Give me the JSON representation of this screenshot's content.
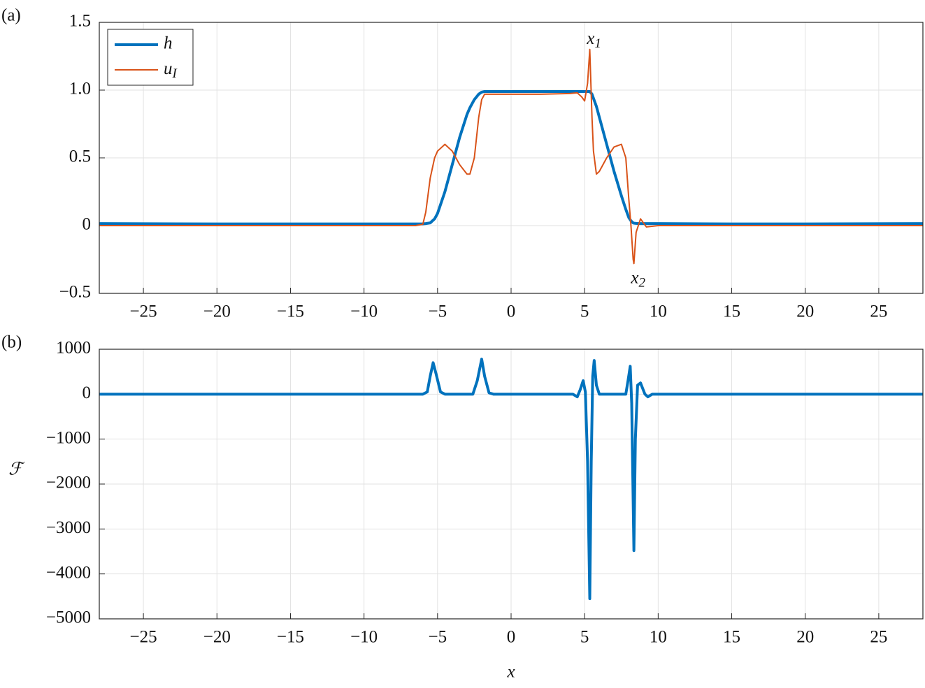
{
  "chart_data": [
    {
      "type": "line",
      "panel_label": "(a)",
      "x": [
        -28,
        -20,
        -10,
        -6.5,
        -6,
        -5.8,
        -5.5,
        -5.2,
        -5,
        -4.5,
        -4,
        -3.5,
        -3,
        -2.8,
        -2.5,
        -2.2,
        -2,
        -1.8,
        -1.5,
        0,
        2,
        4,
        4.5,
        4.8,
        5,
        5.2,
        5.35,
        5.5,
        5.6,
        5.8,
        6,
        6.5,
        7,
        7.5,
        7.8,
        8,
        8.15,
        8.3,
        8.35,
        8.5,
        8.8,
        9.2,
        10,
        15,
        20,
        28
      ],
      "series": [
        {
          "name": "h",
          "color": "#0072BD",
          "width": 4,
          "values": [
            0.015,
            0.012,
            0.012,
            0.012,
            0.013,
            0.015,
            0.02,
            0.05,
            0.09,
            0.25,
            0.45,
            0.65,
            0.82,
            0.87,
            0.93,
            0.97,
            0.985,
            0.99,
            0.99,
            0.99,
            0.99,
            0.99,
            0.99,
            0.99,
            0.99,
            0.99,
            0.99,
            0.97,
            0.94,
            0.88,
            0.8,
            0.6,
            0.4,
            0.22,
            0.12,
            0.06,
            0.035,
            0.02,
            0.018,
            0.016,
            0.015,
            0.015,
            0.015,
            0.012,
            0.012,
            0.015
          ]
        },
        {
          "name": "u_I",
          "color": "#D95319",
          "width": 2,
          "values": [
            0,
            0,
            0,
            0,
            0.01,
            0.1,
            0.35,
            0.5,
            0.55,
            0.6,
            0.55,
            0.45,
            0.38,
            0.38,
            0.5,
            0.8,
            0.93,
            0.97,
            0.97,
            0.97,
            0.97,
            0.975,
            0.98,
            0.95,
            0.92,
            1.05,
            1.3,
            0.8,
            0.55,
            0.38,
            0.4,
            0.5,
            0.58,
            0.6,
            0.5,
            0.2,
            0,
            -0.25,
            -0.28,
            -0.05,
            0.05,
            -0.01,
            0,
            0,
            0,
            0
          ]
        }
      ],
      "annotations": [
        {
          "text": "x_1",
          "x": 5.35,
          "y": 1.3
        },
        {
          "text": "x_2",
          "x": 8.35,
          "y": -0.28
        }
      ],
      "xlim": [
        -28,
        28
      ],
      "xticks": [
        {
          "value": -25,
          "label": "−25"
        },
        {
          "value": -20,
          "label": "−20"
        },
        {
          "value": -15,
          "label": "−15"
        },
        {
          "value": -10,
          "label": "−10"
        },
        {
          "value": -5,
          "label": "−5"
        },
        0,
        5,
        10,
        15,
        20,
        25
      ],
      "ylim": [
        -0.5,
        1.5
      ],
      "yticks": [
        {
          "value": -0.5,
          "label": "−0.5"
        },
        0,
        0.5,
        {
          "value": 1,
          "label": "1.0"
        },
        1.5
      ],
      "grid": true,
      "legend": "upper left"
    },
    {
      "type": "line",
      "panel_label": "(b)",
      "ylabel": "ℱ",
      "xlabel": "x",
      "x": [
        -28,
        -6,
        -5.7,
        -5.5,
        -5.3,
        -5.1,
        -4.8,
        -4.5,
        -2.6,
        -2.3,
        -2,
        -1.8,
        -1.5,
        -1.2,
        3.5,
        4.2,
        4.5,
        4.7,
        4.9,
        5.05,
        5.2,
        5.35,
        5.45,
        5.55,
        5.65,
        5.8,
        6,
        7.8,
        7.95,
        8.1,
        8.2,
        8.35,
        8.45,
        8.6,
        8.8,
        9.1,
        9.3,
        9.6,
        10.5,
        28
      ],
      "series": [
        {
          "color": "#0072BD",
          "width": 4,
          "values": [
            0,
            0,
            50,
            400,
            700,
            450,
            50,
            0,
            0,
            300,
            780,
            400,
            30,
            0,
            0,
            0,
            -60,
            100,
            300,
            50,
            -1500,
            -4550,
            -1500,
            400,
            750,
            200,
            0,
            0,
            300,
            620,
            -200,
            -3480,
            -1000,
            200,
            250,
            0,
            -60,
            0,
            0,
            0
          ]
        }
      ],
      "xlim": [
        -28,
        28
      ],
      "xticks": [
        {
          "value": -25,
          "label": "−25"
        },
        {
          "value": -20,
          "label": "−20"
        },
        {
          "value": -15,
          "label": "−15"
        },
        {
          "value": -10,
          "label": "−10"
        },
        {
          "value": -5,
          "label": "−5"
        },
        0,
        5,
        10,
        15,
        20,
        25
      ],
      "ylim": [
        -5000,
        1000
      ],
      "yticks": [
        {
          "value": -5000,
          "label": "−5000"
        },
        {
          "value": -4000,
          "label": "−4000"
        },
        {
          "value": -3000,
          "label": "−3000"
        },
        {
          "value": -2000,
          "label": "−2000"
        },
        {
          "value": -1000,
          "label": "−1000"
        },
        0,
        1000
      ],
      "grid": true
    }
  ]
}
